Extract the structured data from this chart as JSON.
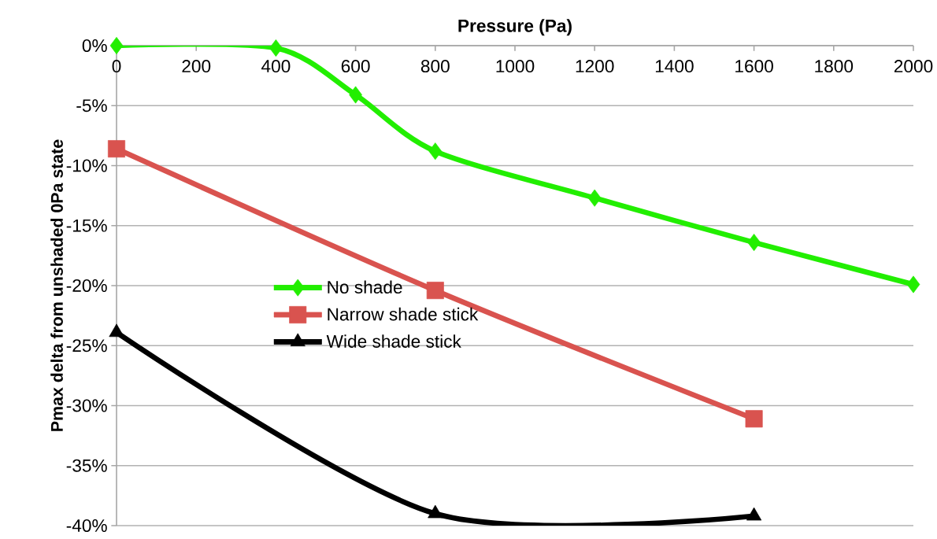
{
  "chart_data": {
    "type": "line",
    "xlabel": "Pressure (Pa)",
    "ylabel": "Pmax delta from unshaded 0Pa state",
    "x": [
      0,
      400,
      600,
      800,
      1200,
      1600,
      2000
    ],
    "series": [
      {
        "name": "No shade",
        "color": "#22ee00",
        "marker": "diamond",
        "values": [
          0,
          -0.2,
          -4.1,
          -8.8,
          -12.7,
          -16.4,
          -19.9
        ]
      },
      {
        "name": "Narrow shade stick",
        "color": "#d9534f",
        "marker": "square",
        "x": [
          0,
          800,
          1600
        ],
        "values": [
          -8.6,
          -20.4,
          -31.1
        ]
      },
      {
        "name": "Wide shade stick",
        "color": "#000000",
        "marker": "triangle",
        "x": [
          0,
          800,
          1600
        ],
        "values": [
          -23.9,
          -39.0,
          -39.2
        ]
      }
    ],
    "xlim": [
      0,
      2000
    ],
    "xticks": [
      0,
      200,
      400,
      600,
      800,
      1000,
      1200,
      1400,
      1600,
      1800,
      2000
    ],
    "ylim": [
      -40,
      0
    ],
    "yticks": [
      {
        "value": -40,
        "label": "-40%"
      },
      {
        "value": -35,
        "label": "-35%"
      },
      {
        "value": -30,
        "label": "-30%"
      },
      {
        "value": -25,
        "label": "-25%"
      },
      {
        "value": -20,
        "label": "-20%"
      },
      {
        "value": -15,
        "label": "-15%"
      },
      {
        "value": -10,
        "label": "-10%"
      },
      {
        "value": -5,
        "label": "-5%"
      },
      {
        "value": 0,
        "label": "0%"
      }
    ],
    "grid": "y",
    "legend": "left",
    "line_style": "solid"
  }
}
